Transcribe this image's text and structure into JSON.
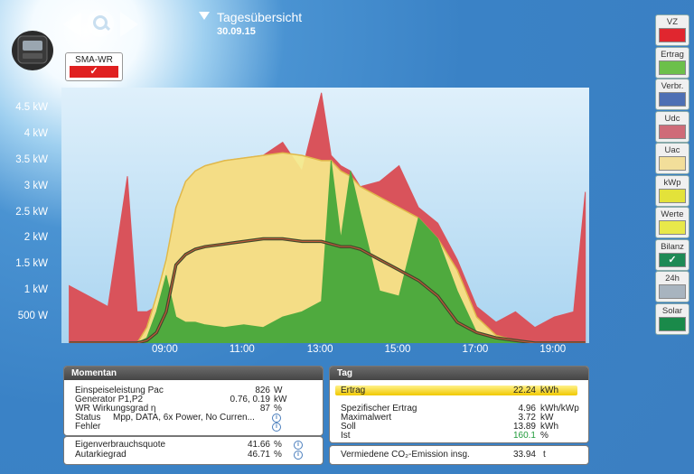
{
  "header": {
    "title": "Tagesübersicht",
    "date": "30.09.15"
  },
  "device": {
    "label": "SMA-WR",
    "check": "✓"
  },
  "chart_data": {
    "type": "area",
    "ylabel_ticks": [
      "500 W",
      "1 kW",
      "1.5 kW",
      "2 kW",
      "2.5 kW",
      "3 kW",
      "3.5 kW",
      "4 kW",
      "4.5 kW"
    ],
    "xlabel_ticks": [
      "09:00",
      "11:00",
      "13:00",
      "15:00",
      "17:00",
      "19:00"
    ],
    "x_hours": [
      6.5,
      7.0,
      7.5,
      8.0,
      8.25,
      8.5,
      8.75,
      9.0,
      9.25,
      9.5,
      9.75,
      10.0,
      10.5,
      11.0,
      11.5,
      12.0,
      12.5,
      13.0,
      13.25,
      13.5,
      13.75,
      14.0,
      14.5,
      15.0,
      15.5,
      16.0,
      16.5,
      17.0,
      17.5,
      18.0,
      18.5,
      19.0,
      19.5,
      19.8
    ],
    "ylim": [
      0,
      4.9
    ],
    "series": [
      {
        "name": "Uac",
        "color": "#f6e98a",
        "values": [
          0,
          0,
          0,
          0,
          0,
          0.3,
          0.9,
          1.6,
          2.6,
          3.1,
          3.3,
          3.4,
          3.5,
          3.55,
          3.6,
          3.65,
          3.6,
          3.5,
          3.5,
          3.3,
          3.2,
          3.0,
          2.8,
          2.6,
          2.4,
          2.0,
          1.4,
          0.5,
          0.15,
          0.05,
          0,
          0,
          0,
          0
        ]
      },
      {
        "name": "Udc",
        "color": "#d9535b",
        "values": [
          1.1,
          0.9,
          0.7,
          3.2,
          0.6,
          0.6,
          0.7,
          1.4,
          2.6,
          3.1,
          3.3,
          3.4,
          3.5,
          3.55,
          3.6,
          3.85,
          3.3,
          4.8,
          3.6,
          3.4,
          3.3,
          3.0,
          3.1,
          3.4,
          2.6,
          2.3,
          1.6,
          0.7,
          0.4,
          0.6,
          0.3,
          0.5,
          0.6,
          2.9
        ]
      },
      {
        "name": "Ertrag",
        "color": "#4faa3e",
        "values": [
          0,
          0,
          0,
          0,
          0,
          0.1,
          0.6,
          1.3,
          0.5,
          0.4,
          0.4,
          0.35,
          0.3,
          0.35,
          0.3,
          0.5,
          0.6,
          0.8,
          3.5,
          2.0,
          3.3,
          2.5,
          1.0,
          0.9,
          2.4,
          2.0,
          1.0,
          0.2,
          0.1,
          0.05,
          0,
          0,
          0,
          0
        ]
      },
      {
        "name": "Verbr.",
        "color": "#bf5a3a",
        "values": [
          0,
          0,
          0,
          0,
          0,
          0.05,
          0.2,
          0.6,
          1.5,
          1.7,
          1.8,
          1.85,
          1.9,
          1.95,
          2.0,
          2.0,
          1.95,
          1.95,
          1.9,
          1.85,
          1.85,
          1.8,
          1.6,
          1.4,
          1.2,
          0.9,
          0.4,
          0.2,
          0.1,
          0.05,
          0,
          0,
          0,
          0
        ]
      }
    ]
  },
  "legend_buttons": [
    {
      "label": "VZ",
      "color": "#e0262f",
      "check": ""
    },
    {
      "label": "Ertrag",
      "color": "#6cc04a",
      "check": ""
    },
    {
      "label": "Verbr.",
      "color": "#4e6fb4",
      "check": ""
    },
    {
      "label": "Udc",
      "color": "#cf6b78",
      "check": ""
    },
    {
      "label": "Uac",
      "color": "#f2de9a",
      "check": ""
    },
    {
      "label": "kWp",
      "color": "#e3e23a",
      "check": ""
    },
    {
      "label": "Werte",
      "color": "#e8e84a",
      "check": ""
    },
    {
      "label": "Bilanz",
      "color": "#1e8a55",
      "check": "✓"
    },
    {
      "label": "24h",
      "color": "#a8b4bf",
      "check": ""
    },
    {
      "label": "Solar",
      "color": "#1a8a4a",
      "check": ""
    }
  ],
  "momentan": {
    "title": "Momentan",
    "rows": [
      {
        "label": "Einspeiseleistung Pac",
        "value": "826",
        "unit": "W"
      },
      {
        "label": "Generator P1,P2",
        "value": "0.76, 0.19",
        "unit": "kW"
      },
      {
        "label": "WR Wirkungsgrad η",
        "value": "87",
        "unit": "%"
      }
    ],
    "status_label": "Status",
    "status_value": "Mpp, DATA, 6x Power, No Curren...",
    "fehler_label": "Fehler",
    "info": "i"
  },
  "quota": {
    "rows": [
      {
        "label": "Eigenverbrauchsquote",
        "value": "41.66",
        "unit": "%"
      },
      {
        "label": "Autarkiegrad",
        "value": "46.71",
        "unit": "%"
      }
    ]
  },
  "tag": {
    "title": "Tag",
    "ertrag": {
      "label": "Ertrag",
      "value": "22.24",
      "unit": "kWh"
    },
    "rows": [
      {
        "label": "Spezifischer Ertrag",
        "value": "4.96",
        "unit": "kWh/kWp"
      },
      {
        "label": "Maximalwert",
        "value": "3.72",
        "unit": "kW"
      },
      {
        "label": "Soll",
        "value": "13.89",
        "unit": "kWh"
      },
      {
        "label": "Ist",
        "value": "160.1",
        "unit": "%"
      }
    ]
  },
  "co2": {
    "label": "Vermiedene CO₂-Emission insg.",
    "value": "33.94",
    "unit": "t"
  }
}
